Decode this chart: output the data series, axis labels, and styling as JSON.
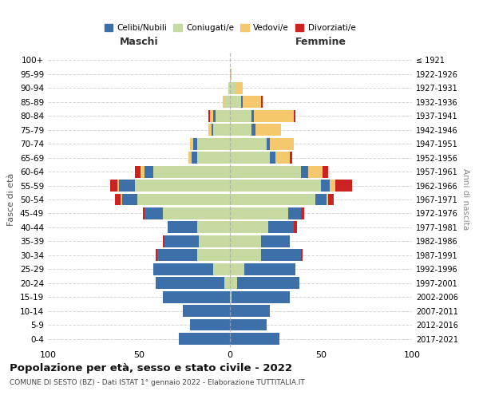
{
  "age_groups": [
    "0-4",
    "5-9",
    "10-14",
    "15-19",
    "20-24",
    "25-29",
    "30-34",
    "35-39",
    "40-44",
    "45-49",
    "50-54",
    "55-59",
    "60-64",
    "65-69",
    "70-74",
    "75-79",
    "80-84",
    "85-89",
    "90-94",
    "95-99",
    "100+"
  ],
  "birth_years": [
    "2017-2021",
    "2012-2016",
    "2007-2011",
    "2002-2006",
    "1997-2001",
    "1992-1996",
    "1987-1991",
    "1982-1986",
    "1977-1981",
    "1972-1976",
    "1967-1971",
    "1962-1966",
    "1957-1961",
    "1952-1956",
    "1947-1951",
    "1942-1946",
    "1937-1941",
    "1932-1936",
    "1927-1931",
    "1922-1926",
    "≤ 1921"
  ],
  "colors": {
    "celibi": "#3d6fa8",
    "coniugati": "#c5d9a0",
    "vedovi": "#f5c86e",
    "divorziati": "#cc2222"
  },
  "maschi": {
    "celibi": [
      28,
      22,
      26,
      37,
      38,
      33,
      22,
      19,
      16,
      10,
      8,
      9,
      5,
      3,
      2,
      1,
      1,
      0,
      0,
      0,
      0
    ],
    "coniugati": [
      0,
      0,
      0,
      0,
      3,
      9,
      18,
      17,
      18,
      37,
      51,
      52,
      42,
      18,
      18,
      9,
      8,
      3,
      1,
      0,
      0
    ],
    "vedovi": [
      0,
      0,
      0,
      0,
      0,
      0,
      0,
      0,
      0,
      0,
      1,
      1,
      2,
      2,
      2,
      2,
      2,
      1,
      0,
      0,
      0
    ],
    "divorziati": [
      0,
      0,
      0,
      0,
      0,
      0,
      1,
      1,
      0,
      1,
      3,
      4,
      3,
      0,
      0,
      0,
      1,
      0,
      0,
      0,
      0
    ]
  },
  "femmine": {
    "nubili": [
      27,
      20,
      22,
      32,
      34,
      28,
      22,
      16,
      14,
      7,
      6,
      5,
      4,
      3,
      2,
      2,
      1,
      1,
      0,
      0,
      0
    ],
    "coniugate": [
      0,
      0,
      0,
      1,
      4,
      8,
      17,
      17,
      21,
      32,
      47,
      50,
      39,
      22,
      20,
      12,
      12,
      6,
      3,
      0,
      0
    ],
    "vedove": [
      0,
      0,
      0,
      0,
      0,
      0,
      0,
      0,
      0,
      0,
      1,
      3,
      8,
      8,
      13,
      14,
      22,
      10,
      4,
      1,
      0
    ],
    "divorziate": [
      0,
      0,
      0,
      0,
      0,
      0,
      1,
      0,
      2,
      2,
      3,
      9,
      3,
      1,
      0,
      0,
      1,
      1,
      0,
      0,
      0
    ]
  },
  "title": "Popolazione per età, sesso e stato civile - 2022",
  "subtitle": "COMUNE DI SESTO (BZ) - Dati ISTAT 1° gennaio 2022 - Elaborazione TUTTITALIA.IT",
  "xlabel_left": "Maschi",
  "xlabel_right": "Femmine",
  "ylabel": "Fasce di età",
  "ylabel_right": "Anni di nascita",
  "xlim": 100,
  "xticks": [
    -100,
    -50,
    0,
    50,
    100
  ],
  "legend_labels": [
    "Celibi/Nubili",
    "Coniugati/e",
    "Vedovi/e",
    "Divorziati/e"
  ],
  "bg_color": "#ffffff"
}
